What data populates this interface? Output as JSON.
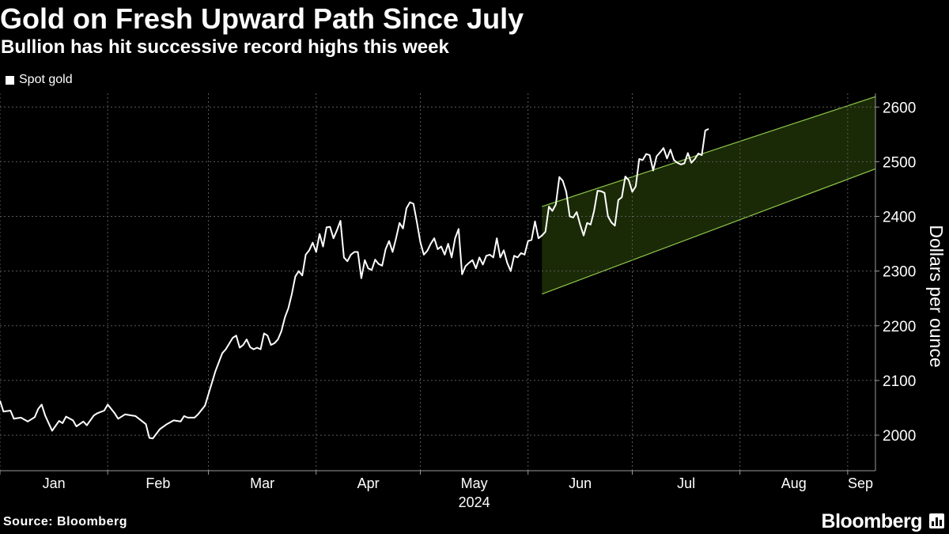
{
  "chart_data": {
    "type": "line",
    "title": "Gold on Fresh Upward Path Since July",
    "subtitle": "Bullion has hit successive record highs this week",
    "legend": [
      "Spot gold"
    ],
    "ylabel": "Dollars per ounce",
    "ylim": [
      1935,
      2625
    ],
    "yticks": [
      2000,
      2100,
      2200,
      2300,
      2400,
      2500,
      2600
    ],
    "xlabel": "2024",
    "xlim": [
      0,
      252
    ],
    "x_tick_labels": [
      {
        "label": "Jan",
        "pos": 0
      },
      {
        "label": "Feb",
        "pos": 31
      },
      {
        "label": "Mar",
        "pos": 60
      },
      {
        "label": "Apr",
        "pos": 91
      },
      {
        "label": "May",
        "pos": 121
      },
      {
        "label": "Jun",
        "pos": 152
      },
      {
        "label": "Jul",
        "pos": 182
      },
      {
        "label": "Aug",
        "pos": 213
      },
      {
        "label": "Sep",
        "pos": 244
      }
    ],
    "series": [
      {
        "name": "Spot gold",
        "color": "#ffffff",
        "points": [
          [
            0,
            2063
          ],
          [
            1,
            2043
          ],
          [
            3,
            2045
          ],
          [
            4,
            2030
          ],
          [
            6,
            2032
          ],
          [
            8,
            2025
          ],
          [
            10,
            2033
          ],
          [
            11,
            2048
          ],
          [
            12,
            2056
          ],
          [
            13,
            2036
          ],
          [
            15,
            2008
          ],
          [
            17,
            2026
          ],
          [
            18,
            2022
          ],
          [
            19,
            2034
          ],
          [
            21,
            2027
          ],
          [
            22,
            2016
          ],
          [
            24,
            2025
          ],
          [
            25,
            2018
          ],
          [
            27,
            2036
          ],
          [
            28,
            2040
          ],
          [
            30,
            2045
          ],
          [
            31,
            2056
          ],
          [
            33,
            2040
          ],
          [
            34,
            2030
          ],
          [
            36,
            2038
          ],
          [
            38,
            2036
          ],
          [
            39,
            2035
          ],
          [
            40,
            2030
          ],
          [
            42,
            2020
          ],
          [
            43,
            1995
          ],
          [
            44,
            1994
          ],
          [
            46,
            2011
          ],
          [
            48,
            2020
          ],
          [
            50,
            2027
          ],
          [
            52,
            2025
          ],
          [
            53,
            2035
          ],
          [
            54,
            2032
          ],
          [
            56,
            2032
          ],
          [
            57,
            2038
          ],
          [
            59,
            2054
          ],
          [
            61,
            2096
          ],
          [
            62,
            2117
          ],
          [
            64,
            2150
          ],
          [
            65,
            2157
          ],
          [
            67,
            2178
          ],
          [
            68,
            2182
          ],
          [
            69,
            2160
          ],
          [
            70,
            2165
          ],
          [
            71,
            2175
          ],
          [
            72,
            2161
          ],
          [
            73,
            2157
          ],
          [
            74,
            2160
          ],
          [
            75,
            2157
          ],
          [
            76,
            2186
          ],
          [
            77,
            2182
          ],
          [
            78,
            2165
          ],
          [
            79,
            2168
          ],
          [
            80,
            2175
          ],
          [
            81,
            2190
          ],
          [
            82,
            2215
          ],
          [
            83,
            2232
          ],
          [
            84,
            2258
          ],
          [
            85,
            2290
          ],
          [
            86,
            2300
          ],
          [
            87,
            2292
          ],
          [
            88,
            2330
          ],
          [
            89,
            2338
          ],
          [
            90,
            2352
          ],
          [
            91,
            2335
          ],
          [
            92,
            2368
          ],
          [
            93,
            2345
          ],
          [
            94,
            2380
          ],
          [
            95,
            2381
          ],
          [
            96,
            2360
          ],
          [
            97,
            2375
          ],
          [
            98,
            2392
          ],
          [
            99,
            2325
          ],
          [
            100,
            2318
          ],
          [
            101,
            2330
          ],
          [
            102,
            2335
          ],
          [
            103,
            2335
          ],
          [
            104,
            2287
          ],
          [
            105,
            2320
          ],
          [
            106,
            2305
          ],
          [
            107,
            2302
          ],
          [
            108,
            2321
          ],
          [
            109,
            2313
          ],
          [
            110,
            2310
          ],
          [
            111,
            2340
          ],
          [
            112,
            2355
          ],
          [
            113,
            2335
          ],
          [
            114,
            2360
          ],
          [
            115,
            2388
          ],
          [
            116,
            2378
          ],
          [
            117,
            2415
          ],
          [
            118,
            2426
          ],
          [
            119,
            2423
          ],
          [
            120,
            2390
          ],
          [
            121,
            2353
          ],
          [
            122,
            2330
          ],
          [
            123,
            2337
          ],
          [
            124,
            2350
          ],
          [
            125,
            2360
          ],
          [
            126,
            2340
          ],
          [
            127,
            2345
          ],
          [
            128,
            2330
          ],
          [
            129,
            2350
          ],
          [
            130,
            2325
          ],
          [
            131,
            2360
          ],
          [
            132,
            2377
          ],
          [
            133,
            2294
          ],
          [
            134,
            2309
          ],
          [
            135,
            2315
          ],
          [
            136,
            2320
          ],
          [
            137,
            2305
          ],
          [
            138,
            2325
          ],
          [
            139,
            2312
          ],
          [
            140,
            2328
          ],
          [
            141,
            2330
          ],
          [
            142,
            2325
          ],
          [
            143,
            2360
          ],
          [
            144,
            2325
          ],
          [
            145,
            2338
          ],
          [
            146,
            2315
          ],
          [
            147,
            2300
          ],
          [
            148,
            2328
          ],
          [
            149,
            2325
          ],
          [
            150,
            2333
          ],
          [
            151,
            2330
          ],
          [
            152,
            2355
          ],
          [
            153,
            2357
          ],
          [
            154,
            2391
          ],
          [
            155,
            2360
          ],
          [
            156,
            2365
          ],
          [
            157,
            2372
          ],
          [
            158,
            2418
          ],
          [
            159,
            2410
          ],
          [
            160,
            2422
          ],
          [
            161,
            2472
          ],
          [
            162,
            2465
          ],
          [
            163,
            2445
          ],
          [
            164,
            2400
          ],
          [
            165,
            2398
          ],
          [
            166,
            2408
          ],
          [
            167,
            2385
          ],
          [
            168,
            2365
          ],
          [
            169,
            2388
          ],
          [
            170,
            2385
          ],
          [
            171,
            2410
          ],
          [
            172,
            2447
          ],
          [
            173,
            2446
          ],
          [
            174,
            2443
          ],
          [
            175,
            2400
          ],
          [
            176,
            2389
          ],
          [
            177,
            2383
          ],
          [
            178,
            2430
          ],
          [
            179,
            2435
          ],
          [
            180,
            2473
          ],
          [
            181,
            2466
          ],
          [
            182,
            2445
          ],
          [
            183,
            2455
          ],
          [
            184,
            2505
          ],
          [
            185,
            2503
          ],
          [
            186,
            2514
          ],
          [
            187,
            2512
          ],
          [
            188,
            2484
          ],
          [
            189,
            2510
          ],
          [
            190,
            2517
          ],
          [
            191,
            2525
          ],
          [
            192,
            2506
          ],
          [
            193,
            2522
          ],
          [
            194,
            2503
          ],
          [
            195,
            2498
          ],
          [
            196,
            2495
          ],
          [
            197,
            2497
          ],
          [
            198,
            2516
          ],
          [
            199,
            2498
          ],
          [
            200,
            2505
          ],
          [
            201,
            2515
          ],
          [
            202,
            2512
          ],
          [
            203,
            2557
          ],
          [
            204,
            2560
          ]
        ]
      }
    ],
    "channel": {
      "x_start": 156,
      "x_end": 252,
      "upper_start": 2418,
      "upper_end": 2619,
      "lower_start": 2258,
      "lower_end": 2487,
      "fill": "#1a2a06",
      "stroke": "#8fc84b"
    },
    "grid": true
  },
  "source": "Source: Bloomberg",
  "brand": "Bloomberg"
}
